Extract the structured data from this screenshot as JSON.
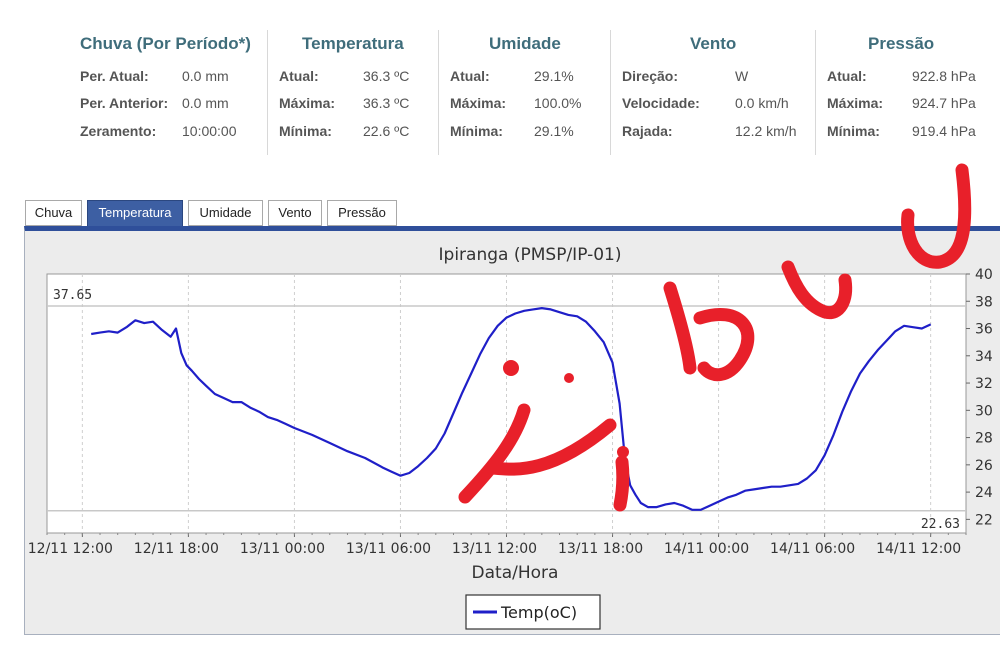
{
  "stats": {
    "rain": {
      "title": "Chuva (Por Período*)",
      "rows": [
        {
          "label": "Per. Atual:",
          "value": "0.0 mm"
        },
        {
          "label": "Per. Anterior:",
          "value": "0.0 mm"
        },
        {
          "label": "Zeramento:",
          "value": "10:00:00"
        }
      ]
    },
    "temperature": {
      "title": "Temperatura",
      "rows": [
        {
          "label": "Atual:",
          "value": "36.3 ºC"
        },
        {
          "label": "Máxima:",
          "value": "36.3 ºC"
        },
        {
          "label": "Mínima:",
          "value": "22.6 ºC"
        }
      ]
    },
    "humidity": {
      "title": "Umidade",
      "rows": [
        {
          "label": "Atual:",
          "value": "29.1%"
        },
        {
          "label": "Máxima:",
          "value": "100.0%"
        },
        {
          "label": "Mínima:",
          "value": "29.1%"
        }
      ]
    },
    "wind": {
      "title": "Vento",
      "rows": [
        {
          "label": "Direção:",
          "value": "W"
        },
        {
          "label": "Velocidade:",
          "value": "0.0 km/h"
        },
        {
          "label": "Rajada:",
          "value": "12.2 km/h"
        }
      ]
    },
    "pressure": {
      "title": "Pressão",
      "rows": [
        {
          "label": "Atual:",
          "value": "922.8 hPa"
        },
        {
          "label": "Máxima:",
          "value": "924.7 hPa"
        },
        {
          "label": "Mínima:",
          "value": "919.4 hPa"
        }
      ]
    }
  },
  "tabs": [
    {
      "label": "Chuva",
      "active": false
    },
    {
      "label": "Temperatura",
      "active": true
    },
    {
      "label": "Umidade",
      "active": false
    },
    {
      "label": "Vento",
      "active": false
    },
    {
      "label": "Pressão",
      "active": false
    }
  ],
  "colors": {
    "line": "#1f1fc8",
    "stat_title": "#3f6d7b",
    "active_tab": "#3d5fa3",
    "scribble": "#e8202a"
  },
  "chart_data": {
    "type": "line",
    "title": "Ipiranga (PMSP/IP-01)",
    "xlabel": "Data/Hora",
    "ylabel": "Temp(oC)",
    "x_ticks": [
      "12/11 12:00",
      "12/11 18:00",
      "13/11 00:00",
      "13/11 06:00",
      "13/11 12:00",
      "13/11 18:00",
      "14/11 00:00",
      "14/11 06:00",
      "14/11 12:00"
    ],
    "x_tick_hours": [
      12,
      18,
      24,
      30,
      36,
      42,
      48,
      54,
      60
    ],
    "y_ticks": [
      22,
      24,
      26,
      28,
      30,
      32,
      34,
      36,
      38,
      40
    ],
    "xlim_hours": [
      10,
      62
    ],
    "ylim": [
      21,
      40
    ],
    "grid": true,
    "legend": "bottom-center",
    "marker_max": {
      "value": 37.65,
      "label": "37.65"
    },
    "marker_min": {
      "value": 22.63,
      "label": "22.63"
    },
    "series": [
      {
        "name": "Temp(oC)",
        "x_hours": [
          12.5,
          13.0,
          13.5,
          14.0,
          14.5,
          15.0,
          15.5,
          16.0,
          16.5,
          17.0,
          17.3,
          17.6,
          17.9,
          18.2,
          18.6,
          19.0,
          19.5,
          20.0,
          20.5,
          21.0,
          21.5,
          22.0,
          22.5,
          23.0,
          23.5,
          24.0,
          25.0,
          26.0,
          27.0,
          28.0,
          29.0,
          29.5,
          30.0,
          30.5,
          31.0,
          31.5,
          32.0,
          32.5,
          33.0,
          33.5,
          34.0,
          34.5,
          35.0,
          35.5,
          36.0,
          36.5,
          37.0,
          37.5,
          38.0,
          38.5,
          39.0,
          39.5,
          40.0,
          40.5,
          41.0,
          41.5,
          42.0,
          42.4,
          42.7,
          43.0,
          43.3,
          43.6,
          44.0,
          44.5,
          45.0,
          45.5,
          46.0,
          46.5,
          47.0,
          47.5,
          48.0,
          48.5,
          49.0,
          49.5,
          50.0,
          50.5,
          51.0,
          51.5,
          52.0,
          52.5,
          53.0,
          53.5,
          54.0,
          54.5,
          55.0,
          55.5,
          56.0,
          56.5,
          57.0,
          57.5,
          58.0,
          58.5,
          59.0,
          59.5,
          60.0
        ],
        "values": [
          35.6,
          35.7,
          35.8,
          35.7,
          36.1,
          36.6,
          36.4,
          36.5,
          35.9,
          35.4,
          36.0,
          34.2,
          33.3,
          32.9,
          32.3,
          31.8,
          31.2,
          30.9,
          30.6,
          30.6,
          30.2,
          29.9,
          29.5,
          29.3,
          29.0,
          28.7,
          28.2,
          27.6,
          27.0,
          26.5,
          25.8,
          25.5,
          25.2,
          25.4,
          25.9,
          26.5,
          27.2,
          28.3,
          29.8,
          31.3,
          32.7,
          34.1,
          35.3,
          36.2,
          36.8,
          37.1,
          37.3,
          37.4,
          37.5,
          37.4,
          37.2,
          37.0,
          36.9,
          36.5,
          35.8,
          35.0,
          33.5,
          30.5,
          26.5,
          24.5,
          23.8,
          23.2,
          22.9,
          22.9,
          23.1,
          23.2,
          23.0,
          22.7,
          22.7,
          23.0,
          23.3,
          23.6,
          23.8,
          24.1,
          24.2,
          24.3,
          24.4,
          24.4,
          24.5,
          24.6,
          25.0,
          25.6,
          26.7,
          28.2,
          29.9,
          31.4,
          32.7,
          33.6,
          34.4,
          35.1,
          35.8,
          36.2,
          36.1,
          36.0,
          36.3
        ]
      }
    ]
  },
  "overlay": {
    "scribble_text": "i buu"
  }
}
